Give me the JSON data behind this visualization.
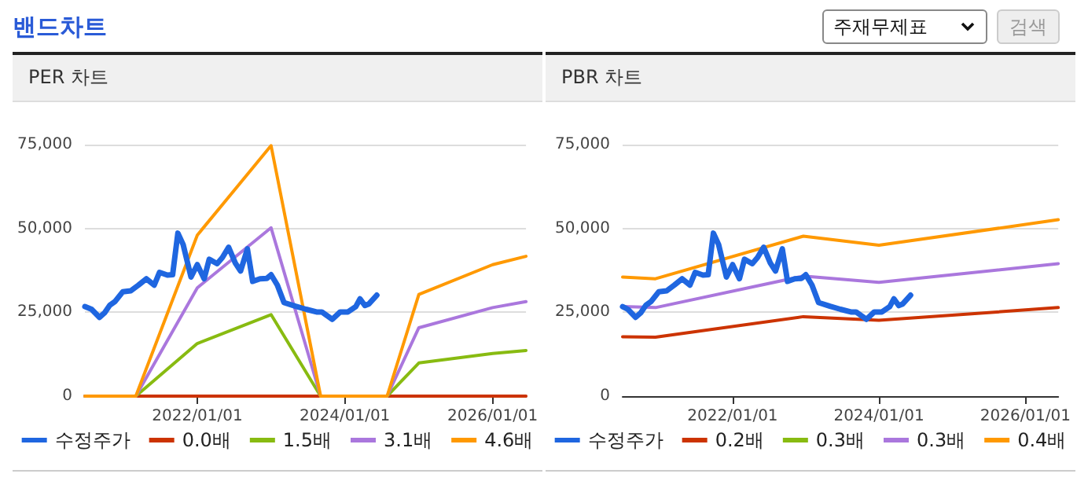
{
  "chart_data": [
    {
      "type": "line",
      "title": "PER 차트",
      "annotations": [
        "밴드차트",
        "주재무제표",
        "검색"
      ],
      "xlim": [
        "2020-06-24",
        "2026-06-15"
      ],
      "xticks": [
        {
          "value": "2022-01-01",
          "label": "2022/01/01"
        },
        {
          "value": "2024-01-01",
          "label": "2024/01/01"
        },
        {
          "value": "2026-01-01",
          "label": "2026/01/01"
        }
      ],
      "ylim": [
        0,
        75000
      ],
      "yticks": [
        {
          "value": 0,
          "label": "0"
        },
        {
          "value": 25000,
          "label": "25,000"
        },
        {
          "value": 50000,
          "label": "50,000"
        },
        {
          "value": 75000,
          "label": "75,000"
        }
      ],
      "grid": "y",
      "legend": "bottom",
      "marker": "none",
      "line_style": "solid",
      "series": [
        {
          "name": "수정주가",
          "color": "#1f66e0",
          "x": [
            "2020-06-24",
            "2020-07-27",
            "2020-09-04",
            "2020-09-29",
            "2020-10-25",
            "2020-11-20",
            "2020-12-28",
            "2021-02-06",
            "2021-03-16",
            "2021-04-24",
            "2021-06-02",
            "2021-06-28",
            "2021-08-06",
            "2021-09-01",
            "2021-09-27",
            "2021-10-23",
            "2021-12-01",
            "2022-01-01",
            "2022-02-04",
            "2022-03-01",
            "2022-04-09",
            "2022-05-05",
            "2022-06-05",
            "2022-07-08",
            "2022-08-03",
            "2022-09-06",
            "2022-10-02",
            "2022-11-07",
            "2022-12-11",
            "2023-01-01",
            "2023-02-01",
            "2023-03-06",
            "2023-05-02",
            "2023-06-23",
            "2023-08-14",
            "2023-09-09",
            "2023-10-31",
            "2023-12-09",
            "2024-01-16",
            "2024-02-24",
            "2024-03-16",
            "2024-04-09",
            "2024-04-29",
            "2024-06-07"
          ],
          "values": [
            26700,
            25900,
            23500,
            24800,
            27100,
            28200,
            31100,
            31400,
            33100,
            35000,
            33100,
            36900,
            36100,
            36200,
            48600,
            45200,
            35500,
            39200,
            35000,
            40800,
            39500,
            41300,
            44400,
            39700,
            37300,
            43900,
            34200,
            35000,
            35100,
            36200,
            33100,
            27900,
            26800,
            25900,
            25100,
            25100,
            22900,
            25100,
            25100,
            26700,
            29000,
            27000,
            27500,
            30100
          ]
        },
        {
          "name": "0.0배",
          "color": "#cc3300",
          "x": [
            "2020-06-24",
            "2021-03-03",
            "2022-01-01",
            "2023-01-01",
            "2023-09-03",
            "2024-07-28",
            "2025-01-01",
            "2026-01-01",
            "2026-06-15"
          ],
          "values": [
            0,
            0,
            0,
            0,
            0,
            0,
            0,
            0,
            0
          ]
        },
        {
          "name": "1.5배",
          "color": "#88bb11",
          "x": [
            "2020-06-24",
            "2021-03-03",
            "2022-01-01",
            "2023-01-01",
            "2023-09-03",
            "2024-07-28",
            "2025-01-01",
            "2026-01-01",
            "2026-06-15"
          ],
          "values": [
            0,
            0,
            15700,
            24300,
            0,
            0,
            9900,
            12700,
            13600
          ]
        },
        {
          "name": "3.1배",
          "color": "#aa77dd",
          "x": [
            "2020-06-24",
            "2021-03-03",
            "2022-01-01",
            "2023-01-01",
            "2023-09-03",
            "2024-07-28",
            "2025-01-01",
            "2026-01-01",
            "2026-06-15"
          ],
          "values": [
            0,
            0,
            32300,
            50200,
            0,
            0,
            20400,
            26400,
            28200
          ]
        },
        {
          "name": "4.6배",
          "color": "#ff9900",
          "x": [
            "2020-06-24",
            "2021-03-03",
            "2022-01-01",
            "2023-01-01",
            "2023-09-03",
            "2024-07-28",
            "2025-01-01",
            "2026-01-01",
            "2026-06-15"
          ],
          "values": [
            0,
            0,
            48000,
            74700,
            0,
            0,
            30300,
            39200,
            41700
          ]
        }
      ]
    },
    {
      "type": "line",
      "title": "PBR 차트",
      "xlim": [
        "2020-07-01",
        "2026-06-14"
      ],
      "xticks": [
        {
          "value": "2022-01-01",
          "label": "2022/01/01"
        },
        {
          "value": "2024-01-01",
          "label": "2024/01/01"
        },
        {
          "value": "2026-01-01",
          "label": "2026/01/01"
        }
      ],
      "ylim": [
        0,
        75000
      ],
      "yticks": [
        {
          "value": 0,
          "label": "0"
        },
        {
          "value": 25000,
          "label": "25,000"
        },
        {
          "value": 50000,
          "label": "50,000"
        },
        {
          "value": 75000,
          "label": "75,000"
        }
      ],
      "grid": "y",
      "legend": "bottom",
      "marker": "none",
      "line_style": "solid",
      "series": [
        {
          "name": "수정주가",
          "color": "#1f66e0",
          "x": [
            "2020-07-01",
            "2020-07-27",
            "2020-09-04",
            "2020-09-29",
            "2020-10-25",
            "2020-11-20",
            "2020-12-28",
            "2021-02-06",
            "2021-03-16",
            "2021-04-24",
            "2021-06-02",
            "2021-06-28",
            "2021-08-06",
            "2021-09-01",
            "2021-09-27",
            "2021-10-23",
            "2021-12-01",
            "2022-01-01",
            "2022-02-04",
            "2022-03-01",
            "2022-04-09",
            "2022-05-05",
            "2022-06-05",
            "2022-07-08",
            "2022-08-03",
            "2022-09-06",
            "2022-10-02",
            "2022-11-07",
            "2022-12-11",
            "2023-01-01",
            "2023-02-01",
            "2023-03-06",
            "2023-05-02",
            "2023-06-23",
            "2023-08-14",
            "2023-09-09",
            "2023-10-31",
            "2023-12-09",
            "2024-01-16",
            "2024-02-24",
            "2024-03-16",
            "2024-04-09",
            "2024-04-29",
            "2024-06-07"
          ],
          "values": [
            26700,
            25900,
            23500,
            24800,
            27100,
            28200,
            31100,
            31400,
            33100,
            35000,
            33100,
            36900,
            36100,
            36200,
            48600,
            45200,
            35500,
            39200,
            35000,
            40800,
            39500,
            41300,
            44400,
            39700,
            37300,
            43900,
            34200,
            35000,
            35100,
            36200,
            33100,
            27900,
            26800,
            25900,
            25100,
            25100,
            22900,
            25100,
            25100,
            26700,
            29000,
            27000,
            27500,
            30100
          ]
        },
        {
          "name": "0.2배",
          "color": "#cc3300",
          "x": [
            "2020-07-01",
            "2020-12-12",
            "2022-12-20",
            "2024-01-01",
            "2026-06-14"
          ],
          "values": [
            17700,
            17600,
            23700,
            22600,
            26400
          ]
        },
        {
          "name": "0.3배",
          "color": "#88bb11"
        },
        {
          "name": "0.3배",
          "color": "#aa77dd",
          "x": [
            "2020-07-01",
            "2020-12-12",
            "2022-12-20",
            "2024-01-01",
            "2026-06-14"
          ],
          "values": [
            26700,
            26400,
            35800,
            33900,
            39500
          ]
        },
        {
          "name": "0.4배",
          "color": "#ff9900",
          "x": [
            "2020-07-01",
            "2020-12-12",
            "2022-12-20",
            "2024-01-01",
            "2026-06-14"
          ],
          "values": [
            35500,
            35000,
            47700,
            45000,
            52600
          ]
        }
      ]
    }
  ]
}
